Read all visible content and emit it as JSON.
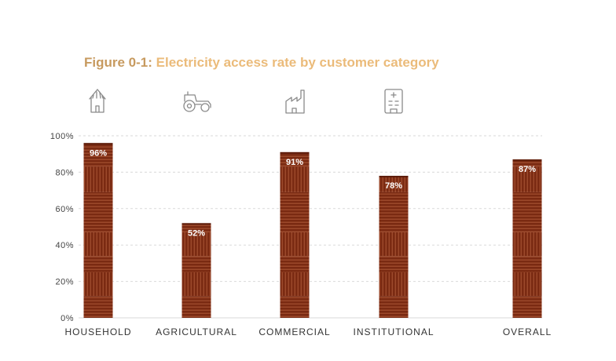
{
  "figure_label": "Figure 0-1:",
  "figure_title": "Electricity access rate by customer category",
  "icons": [
    "house-icon",
    "tractor-icon",
    "factory-icon",
    "hospital-icon"
  ],
  "colors": {
    "bar": "#7a2a12",
    "bar_light": "#9d4a2c",
    "title_label": "#c79a5f",
    "title_text": "#ebbb7a",
    "grid": "#d9d9d9"
  },
  "chart_data": {
    "type": "bar",
    "title": "Electricity access rate by customer category",
    "categories": [
      "HOUSEHOLD",
      "AGRICULTURAL",
      "COMMERCIAL",
      "INSTITUTIONAL",
      "OVERALL"
    ],
    "values": [
      96,
      52,
      91,
      78,
      87
    ],
    "value_labels": [
      "96%",
      "52%",
      "91%",
      "78%",
      "87%"
    ],
    "ylim": [
      0,
      100
    ],
    "yticks": [
      0,
      20,
      40,
      60,
      80,
      100
    ],
    "ytick_labels": [
      "0%",
      "20%",
      "40%",
      "60%",
      "80%",
      "100%"
    ],
    "xlabel": "",
    "ylabel": "",
    "grid": true
  }
}
